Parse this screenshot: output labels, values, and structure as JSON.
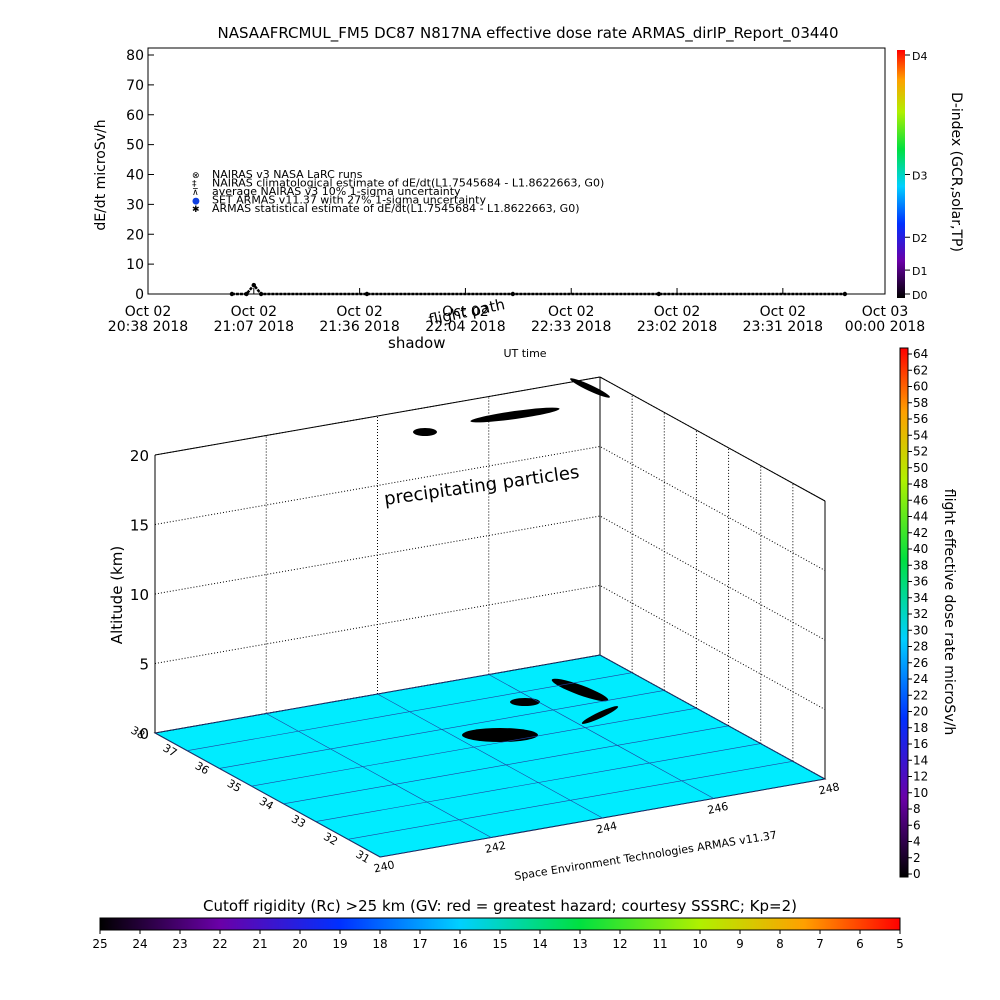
{
  "chart_data": [
    {
      "type": "line",
      "title": "NASAAFRCMUL_FM5 DC87 N817NA effective dose rate ARMAS_dirIP_Report_03440",
      "ylabel": "dE/dt microSv/h",
      "xlabel": "UT time",
      "xlim": [
        0,
        202
      ],
      "xticks": [
        {
          "value": 0,
          "label": "Oct 02\n20:38 2018"
        },
        {
          "value": 29,
          "label": "Oct 02\n21:07 2018"
        },
        {
          "value": 58,
          "label": "Oct 02\n21:36 2018"
        },
        {
          "value": 87,
          "label": "Oct 02\n22:04 2018"
        },
        {
          "value": 116,
          "label": "Oct 02\n22:33 2018"
        },
        {
          "value": 145,
          "label": "Oct 02\n23:02 2018"
        },
        {
          "value": 174,
          "label": "Oct 02\n23:31 2018"
        },
        {
          "value": 202,
          "label": "Oct 03\n00:00 2018"
        }
      ],
      "ylim": [
        0,
        80
      ],
      "yticks": [
        0,
        10,
        20,
        30,
        40,
        50,
        60,
        70,
        80
      ],
      "y2label": "D-index (GCR,solar,TP)",
      "y2lim": [
        0,
        80
      ],
      "y2ticks": [
        {
          "value": 0,
          "label": "D0"
        },
        {
          "value": 8,
          "label": "D1"
        },
        {
          "value": 19,
          "label": "D2"
        },
        {
          "value": 40,
          "label": "D3"
        },
        {
          "value": 80,
          "label": "D4"
        }
      ],
      "legend": [
        {
          "symbol": "⊗",
          "name": "NAIRAS v3 NASA LaRC runs",
          "color": "#000000"
        },
        {
          "symbol": "‡",
          "name": "NAIRAS climatological estimate of dE/dt(L1.7545684 - L1.8622663, G0)",
          "color": "#000000"
        },
        {
          "symbol": "⊼",
          "name": "average NAIRAS v3 10% 1-sigma uncertainty",
          "color": "#000000"
        },
        {
          "symbol": "●",
          "name": "SET ARMAS v11.37 with 27% 1-sigma uncertainty",
          "color": "#1040e0"
        },
        {
          "symbol": "✱",
          "name": "ARMAS statistical estimate of dE/dt(L1.7545684 - L1.8622663, G0)",
          "color": "#000000"
        }
      ],
      "series": [
        {
          "name": "ARMAS statistical estimate of dE/dt(L1.7545684 - L1.8622663, G0)",
          "color": "#000000",
          "x": [
            23,
            27,
            29,
            31,
            60,
            100,
            140,
            191
          ],
          "values": [
            0,
            0,
            3,
            0,
            0,
            0,
            0,
            0
          ]
        }
      ]
    },
    {
      "type": "surface3d",
      "zlabel": "Altitude (km)",
      "zlim": [
        0,
        20
      ],
      "zticks": [
        0,
        5,
        10,
        15,
        20
      ],
      "xlim": [
        240,
        248
      ],
      "xticks": [
        240,
        242,
        244,
        246,
        248
      ],
      "ylim": [
        31,
        38
      ],
      "yticks": [
        31,
        32,
        33,
        34,
        35,
        36,
        37,
        38
      ],
      "annotations": [
        "precipitating particles",
        "shadow",
        "flight path"
      ],
      "footer": "Space Environment Technologies ARMAS v11.37"
    },
    {
      "type": "colorbar",
      "orientation": "vertical",
      "label": "flight effective dose rate microSv/h",
      "lim": [
        0,
        64
      ],
      "ticks": [
        0,
        2,
        4,
        6,
        8,
        10,
        12,
        14,
        16,
        18,
        20,
        22,
        24,
        26,
        28,
        30,
        32,
        34,
        36,
        38,
        40,
        42,
        44,
        46,
        48,
        50,
        52,
        54,
        56,
        58,
        60,
        62,
        64
      ]
    },
    {
      "type": "colorbar",
      "orientation": "horizontal",
      "title": "Cutoff rigidity (Rc) >25 km (GV: red = greatest hazard; courtesy SSSRC; Kp=2)",
      "lim": [
        25,
        5
      ],
      "ticks": [
        25,
        24,
        23,
        22,
        21,
        20,
        19,
        18,
        17,
        16,
        15,
        14,
        13,
        12,
        11,
        10,
        9,
        8,
        7,
        6,
        5
      ]
    }
  ]
}
